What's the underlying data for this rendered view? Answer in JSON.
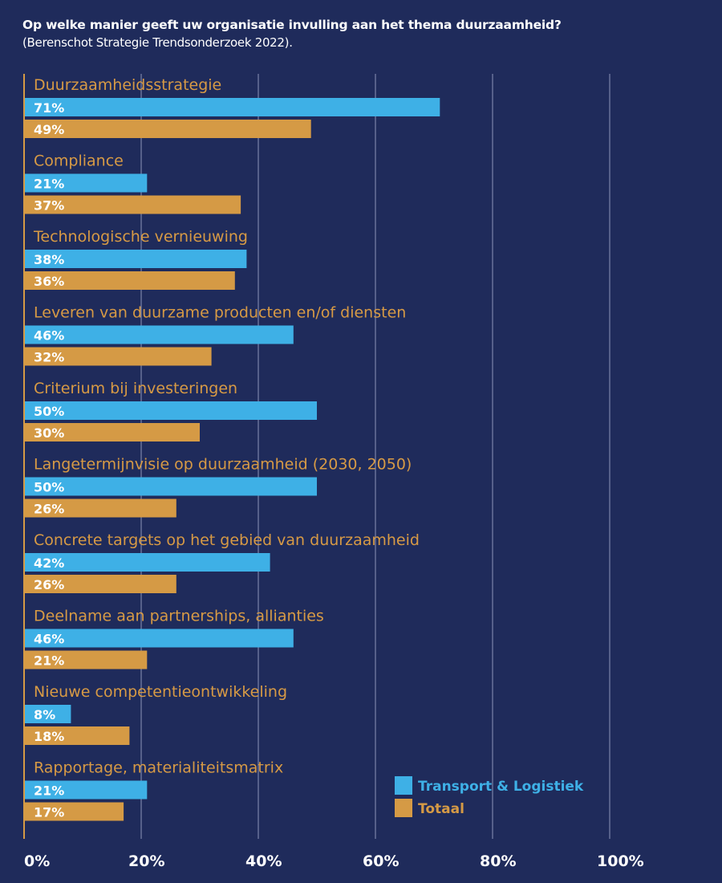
{
  "chart_data": {
    "type": "bar",
    "orientation": "horizontal",
    "title": "Op welke manier geeft uw organisatie invulling aan het thema duurzaamheid?",
    "subtitle": "(Berenschot Strategie Trendsonderzoek 2022).",
    "categories": [
      "Duurzaamheidsstrategie",
      "Compliance",
      "Technologische vernieuwing",
      "Leveren van duurzame producten en/of diensten",
      "Criterium bij investeringen",
      "Langetermijnvisie op duurzaamheid (2030, 2050)",
      "Concrete targets op het gebied van duurzaamheid",
      "Deelname aan partnerships, allianties",
      "Nieuwe competentieontwikkeling",
      "Rapportage, materialiteitsmatrix"
    ],
    "series": [
      {
        "name": "Transport & Logistiek",
        "color": "#3eb0e6",
        "values": [
          71,
          21,
          38,
          46,
          50,
          50,
          42,
          46,
          8,
          21
        ]
      },
      {
        "name": "Totaal",
        "color": "#d59a45",
        "values": [
          49,
          37,
          36,
          32,
          30,
          26,
          26,
          21,
          18,
          17
        ]
      }
    ],
    "xticks": [
      "0%",
      "20%",
      "40%",
      "60%",
      "80%",
      "100%"
    ],
    "xlim": [
      0,
      100
    ],
    "grid": true,
    "legend_position": "bottom-right",
    "value_suffix": "%",
    "colors": {
      "background": "#1f2b5b",
      "category_label": "#d79a45",
      "axis": "#d59a45"
    }
  }
}
